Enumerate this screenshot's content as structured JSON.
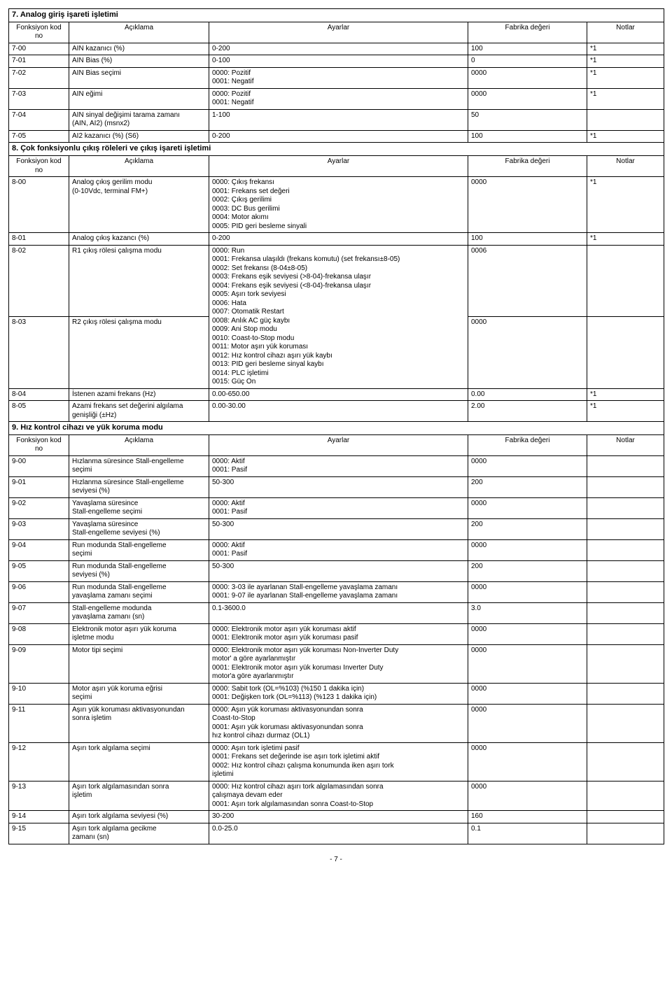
{
  "columns": [
    "Fonksiyon kod no",
    "Açıklama",
    "Ayarlar",
    "Fabrika değeri",
    "Notlar"
  ],
  "section7": {
    "title": "7. Analog giriş işareti işletimi",
    "rows": [
      {
        "code": "7-00",
        "desc": "AIN kazanıcı (%)",
        "settings": "0-200",
        "def": "100",
        "notes": "*1"
      },
      {
        "code": "7-01",
        "desc": "AIN Bias (%)",
        "settings": "0-100",
        "def": "0",
        "notes": "*1"
      },
      {
        "code": "7-02",
        "desc": "AIN Bias seçimi",
        "settings": "0000: Pozitif\n0001: Negatif",
        "def": "0000",
        "notes": "*1"
      },
      {
        "code": "7-03",
        "desc": "AIN eğimi",
        "settings": "0000: Pozitif\n0001: Negatif",
        "def": "0000",
        "notes": "*1"
      },
      {
        "code": "7-04",
        "desc": "AIN sinyal değişimi tarama zamanı\n(AIN, AI2) (msnx2)",
        "settings": "1-100",
        "def": "50",
        "notes": ""
      },
      {
        "code": "7-05",
        "desc": "AI2 kazanıcı (%) (S6)",
        "settings": "0-200",
        "def": "100",
        "notes": "*1"
      }
    ]
  },
  "section8": {
    "title": "8. Çok fonksiyonlu çıkış röleleri ve çıkış işareti işletimi",
    "rows": [
      {
        "code": "8-00",
        "desc": "Analog çıkış gerilim modu\n(0-10Vdc, terminal FM+)",
        "settings": "0000: Çıkış frekansı\n0001: Frekans set değeri\n0002: Çıkış gerilimi\n0003: DC Bus gerilimi\n0004: Motor akımı\n0005: PID geri besleme sinyali",
        "def": "0000",
        "notes": "*1"
      },
      {
        "code": "8-01",
        "desc": "Analog çıkış kazancı (%)",
        "settings": "0-200",
        "def": "100",
        "notes": "*1"
      },
      {
        "code": "8-02",
        "desc": "R1 çıkış rölesi çalışma modu",
        "settings": "0000: Run\n0001: Frekansa ulaşıldı (frekans komutu) (set frekansı±8-05)\n0002: Set frekansı (8-04±8-05)\n0003: Frekans eşik seviyesi (>8-04)-frekansa ulaşır\n0004: Frekans eşik seviyesi (<8-04)-frekansa ulaşır\n0005: Aşırı tork seviyesi\n0006: Hata\n0007: Otomatik Restart\n0008: Anlık AC güç kaybı\n0009: Ani Stop modu\n0010: Coast-to-Stop modu\n0011: Motor aşırı yük koruması\n0012: Hız kontrol cihazı aşırı yük kaybı\n0013: PID geri besleme sinyal kaybı\n0014: PLC işletimi\n0015: Güç On",
        "def": "0006",
        "notes": "",
        "rowspan2_settings": true
      },
      {
        "code": "8-03",
        "desc": "R2 çıkış rölesi çalışma modu",
        "settings": "",
        "def": "0000",
        "notes": ""
      },
      {
        "code": "8-04",
        "desc": "İstenen azami frekans (Hz)",
        "settings": "0.00-650.00",
        "def": "0.00",
        "notes": "*1"
      },
      {
        "code": "8-05",
        "desc": "Azami frekans set değerini algılama\ngenişliği (±Hz)",
        "settings": "0.00-30.00",
        "def": "2.00",
        "notes": "*1"
      }
    ]
  },
  "section9": {
    "title": "9. Hız kontrol cihazı ve yük koruma modu",
    "rows": [
      {
        "code": "9-00",
        "desc": "Hızlanma süresince Stall-engelleme\nseçimi",
        "settings": "0000: Aktif\n0001: Pasif",
        "def": "0000",
        "notes": ""
      },
      {
        "code": "9-01",
        "desc": "Hızlanma süresince Stall-engelleme\nseviyesi (%)",
        "settings": "50-300",
        "def": "200",
        "notes": ""
      },
      {
        "code": "9-02",
        "desc": "Yavaşlama süresince\nStall-engelleme seçimi",
        "settings": "0000: Aktif\n0001: Pasif",
        "def": "0000",
        "notes": ""
      },
      {
        "code": "9-03",
        "desc": "Yavaşlama süresince\nStall-engelleme seviyesi (%)",
        "settings": "50-300",
        "def": "200",
        "notes": ""
      },
      {
        "code": "9-04",
        "desc": "Run modunda Stall-engelleme\nseçimi",
        "settings": "0000: Aktif\n0001: Pasif",
        "def": "0000",
        "notes": ""
      },
      {
        "code": "9-05",
        "desc": "Run modunda Stall-engelleme\nseviyesi (%)",
        "settings": "50-300",
        "def": "200",
        "notes": ""
      },
      {
        "code": "9-06",
        "desc": "Run modunda Stall-engelleme\nyavaşlama zamanı seçimi",
        "settings": "0000: 3-03 ile ayarlanan Stall-engelleme yavaşlama zamanı\n0001: 9-07 ile ayarlanan Stall-engelleme yavaşlama zamanı",
        "def": "0000",
        "notes": ""
      },
      {
        "code": "9-07",
        "desc": "Stall-engelleme modunda\nyavaşlama zamanı (sn)",
        "settings": "0.1-3600.0",
        "def": "3.0",
        "notes": ""
      },
      {
        "code": "9-08",
        "desc": "Elektronik motor aşırı yük koruma\nişletme modu",
        "settings": "0000: Elektronik motor aşırı yük koruması aktif\n0001: Elektronik motor aşırı yük koruması pasif",
        "def": "0000",
        "notes": ""
      },
      {
        "code": "9-09",
        "desc": "Motor tipi seçimi",
        "settings": "0000: Elektronik motor aşırı yük koruması Non-Inverter Duty\nmotor' a göre ayarlanmıştır\n0001: Elektronik motor aşırı yük koruması Inverter Duty\nmotor'a göre ayarlanmıştır",
        "def": "0000",
        "notes": ""
      },
      {
        "code": "9-10",
        "desc": "Motor aşırı yük koruma eğrisi\nseçimi",
        "settings": "0000: Sabit tork (OL=%103) (%150 1 dakika için)\n0001: Değişken tork (OL=%113) (%123 1 dakika için)",
        "def": "0000",
        "notes": ""
      },
      {
        "code": "9-11",
        "desc": "Aşırı yük koruması aktivasyonundan\nsonra işletim",
        "settings": "0000: Aşırı yük koruması aktivasyonundan sonra\nCoast-to-Stop\n0001: Aşırı yük koruması aktivasyonundan sonra\nhız kontrol cihazı durmaz (OL1)",
        "def": "0000",
        "notes": ""
      },
      {
        "code": "9-12",
        "desc": "Aşırı tork algılama seçimi",
        "settings": "0000: Aşırı tork işletimi pasif\n0001: Frekans set değerinde ise aşırı tork işletimi aktif\n0002: Hız kontrol cihazı çalışma konumunda iken aşırı tork\nişletimi",
        "def": "0000",
        "notes": ""
      },
      {
        "code": "9-13",
        "desc": "Aşırı tork algılamasından sonra\nişletim",
        "settings": "0000: Hız kontrol cihazı aşırı tork algılamasından sonra\nçalışmaya devam eder\n0001: Aşırı tork algılamasından sonra Coast-to-Stop",
        "def": "0000",
        "notes": ""
      },
      {
        "code": "9-14",
        "desc": "Aşırı tork algılama seviyesi (%)",
        "settings": "30-200",
        "def": "160",
        "notes": ""
      },
      {
        "code": "9-15",
        "desc": "Aşırı tork algılama gecikme\nzamanı (sn)",
        "settings": "0.0-25.0",
        "def": "0.1",
        "notes": ""
      }
    ]
  },
  "page_number": "- 7 -"
}
